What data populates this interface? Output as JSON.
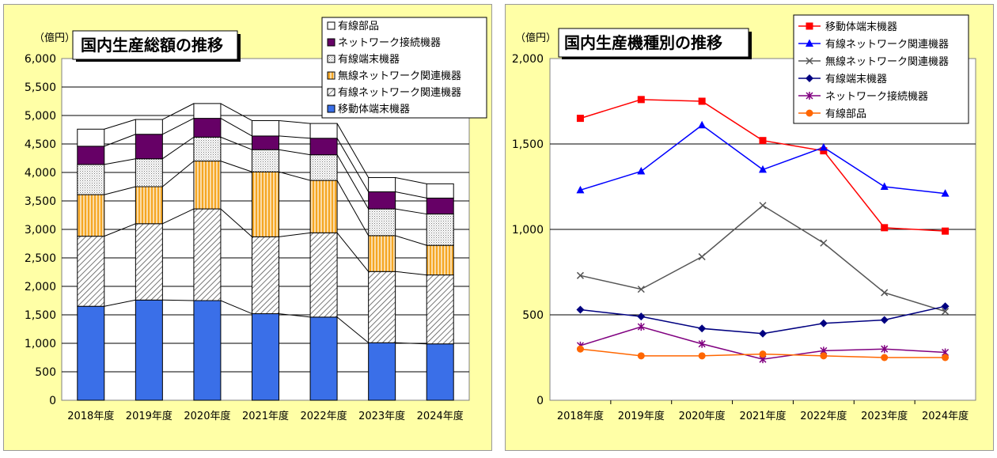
{
  "chart_data": [
    {
      "type": "bar",
      "stacked": true,
      "title": "国内生産総額の推移",
      "unit_label": "（億円）",
      "categories": [
        "2018年度",
        "2019年度",
        "2020年度",
        "2021年度",
        "2022年度",
        "2023年度",
        "2024年度"
      ],
      "ylim": [
        0,
        6000
      ],
      "yticks": [
        0,
        500,
        1000,
        1500,
        2000,
        2500,
        3000,
        3500,
        4000,
        4500,
        5000,
        5500,
        6000
      ],
      "ytick_labels": [
        "0",
        "500",
        "1,000",
        "1,500",
        "2,000",
        "2,500",
        "3,000",
        "3,500",
        "4,000",
        "4,500",
        "5,000",
        "5,500",
        "6,000"
      ],
      "grid": true,
      "series": [
        {
          "name": "移動体端末機器",
          "color": "#3a6fe8",
          "pattern": "solid",
          "values": [
            1650,
            1760,
            1750,
            1520,
            1460,
            1010,
            990
          ]
        },
        {
          "name": "有線ネットワーク関連機器",
          "color": "#ffffff",
          "pattern": "diagonal",
          "values": [
            1230,
            1340,
            1610,
            1350,
            1480,
            1250,
            1210
          ]
        },
        {
          "name": "無線ネットワーク関連機器",
          "color": "#f5a623",
          "pattern": "vertical",
          "values": [
            730,
            650,
            840,
            1140,
            920,
            630,
            520
          ]
        },
        {
          "name": "有線端末機器",
          "color": "#ffffff",
          "pattern": "dots",
          "values": [
            530,
            490,
            420,
            390,
            450,
            470,
            550
          ]
        },
        {
          "name": "ネットワーク接続機器",
          "color": "#660066",
          "pattern": "solid",
          "values": [
            320,
            430,
            330,
            240,
            290,
            300,
            280
          ]
        },
        {
          "name": "有線部品",
          "color": "#ffffff",
          "pattern": "solid",
          "values": [
            300,
            260,
            260,
            270,
            260,
            250,
            250
          ]
        }
      ],
      "legend_order": [
        "有線部品",
        "ネットワーク接続機器",
        "有線端末機器",
        "無線ネットワーク関連機器",
        "有線ネットワーク関連機器",
        "移動体端末機器"
      ],
      "legend_position": "top-right"
    },
    {
      "type": "line",
      "title": "国内生産機種別の推移",
      "unit_label": "（億円）",
      "categories": [
        "2018年度",
        "2019年度",
        "2020年度",
        "2021年度",
        "2022年度",
        "2023年度",
        "2024年度"
      ],
      "ylim": [
        0,
        2000
      ],
      "yticks": [
        0,
        500,
        1000,
        1500,
        2000
      ],
      "ytick_labels": [
        "0",
        "500",
        "1,000",
        "1,500",
        "2,000"
      ],
      "grid": true,
      "series": [
        {
          "name": "移動体端末機器",
          "color": "#ff0000",
          "marker": "square",
          "values": [
            1650,
            1760,
            1750,
            1520,
            1460,
            1010,
            990
          ]
        },
        {
          "name": "有線ネットワーク関連機器",
          "color": "#0000ff",
          "marker": "triangle",
          "values": [
            1230,
            1340,
            1610,
            1350,
            1480,
            1250,
            1210
          ]
        },
        {
          "name": "無線ネットワーク関連機器",
          "color": "#555555",
          "marker": "x",
          "values": [
            730,
            650,
            840,
            1140,
            920,
            630,
            520
          ]
        },
        {
          "name": "有線端末機器",
          "color": "#000080",
          "marker": "diamond",
          "values": [
            530,
            490,
            420,
            390,
            450,
            470,
            550
          ]
        },
        {
          "name": "ネットワーク接続機器",
          "color": "#800080",
          "marker": "star",
          "values": [
            320,
            430,
            330,
            240,
            290,
            300,
            280
          ]
        },
        {
          "name": "有線部品",
          "color": "#ff6600",
          "marker": "circle",
          "values": [
            300,
            260,
            260,
            270,
            260,
            250,
            250
          ]
        }
      ],
      "legend_position": "top-right"
    }
  ]
}
